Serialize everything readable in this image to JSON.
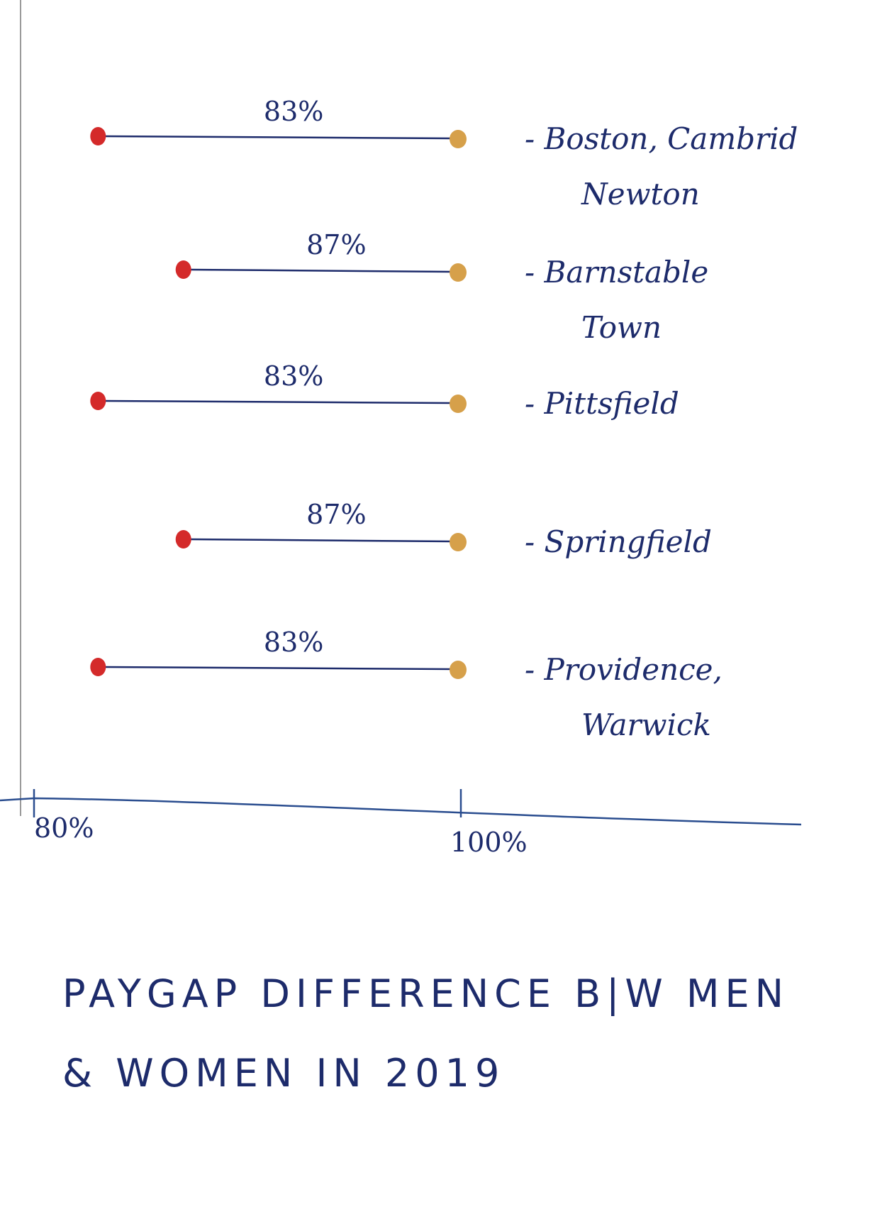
{
  "chart_data": {
    "type": "dumbbell",
    "title": "PAYGAP DIFFERENCE B|W MEN & WOMEN IN 2019",
    "xlabel": "",
    "ylabel": "",
    "xlim": [
      80,
      100
    ],
    "x_ticks": [
      {
        "value": 80,
        "label": "80%"
      },
      {
        "value": 100,
        "label": "100%"
      }
    ],
    "rows": [
      {
        "category": [
          "- Boston, Cambrid",
          "Newton"
        ],
        "women": 83,
        "men": 100,
        "label": "83%"
      },
      {
        "category": [
          "- Barnstable",
          "Town"
        ],
        "women": 87,
        "men": 100,
        "label": "87%"
      },
      {
        "category": [
          "- Pittsfield"
        ],
        "women": 83,
        "men": 100,
        "label": "83%"
      },
      {
        "category": [
          "- Springfield"
        ],
        "women": 87,
        "men": 100,
        "label": "87%"
      },
      {
        "category": [
          "- Providence,",
          "Warwick"
        ],
        "women": 83,
        "men": 100,
        "label": "83%"
      }
    ],
    "colors": {
      "women_dot": "#d42a2a",
      "men_dot": "#d6a04a",
      "line": "#1d2b6b",
      "axis": "#2a4d8f"
    }
  }
}
